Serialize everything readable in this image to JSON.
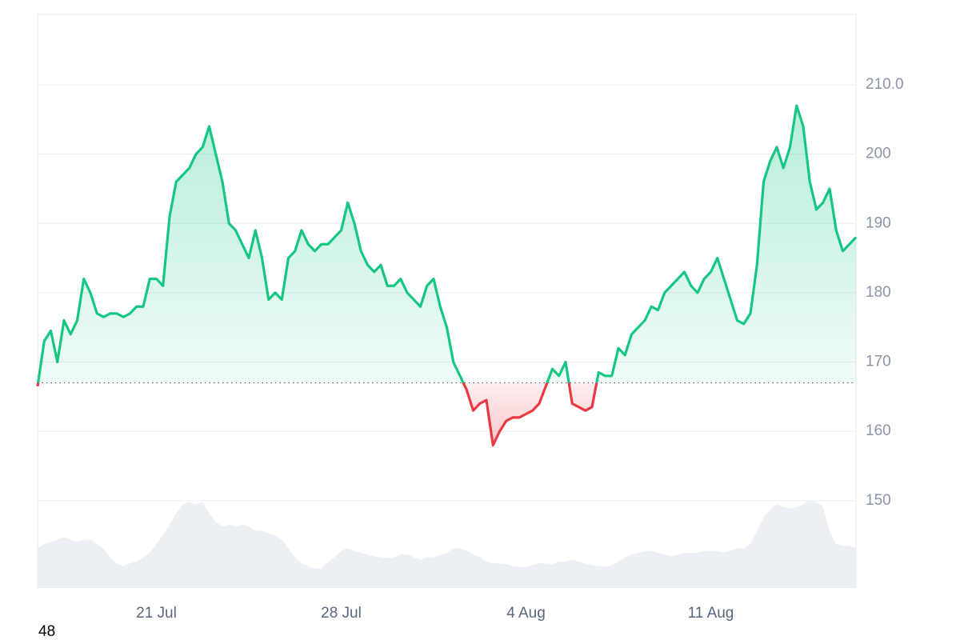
{
  "chart_data": {
    "type": "baseline_line",
    "categories": [
      null,
      null,
      null,
      null,
      null,
      null,
      null,
      null,
      null,
      null,
      null,
      null,
      null,
      null,
      null,
      null,
      null,
      null,
      "21 Jul",
      null,
      null,
      null,
      null,
      null,
      null,
      null,
      null,
      null,
      null,
      null,
      null,
      null,
      null,
      null,
      null,
      null,
      null,
      null,
      null,
      null,
      null,
      null,
      null,
      null,
      null,
      null,
      "28 Jul",
      null,
      null,
      null,
      null,
      null,
      null,
      null,
      null,
      null,
      null,
      null,
      null,
      null,
      null,
      null,
      null,
      null,
      null,
      null,
      null,
      null,
      null,
      null,
      null,
      null,
      null,
      null,
      "4 Aug",
      null,
      null,
      null,
      null,
      null,
      null,
      null,
      null,
      null,
      null,
      null,
      null,
      null,
      null,
      null,
      null,
      null,
      null,
      null,
      null,
      null,
      null,
      null,
      null,
      null,
      null,
      null,
      "11 Aug",
      null,
      null,
      null,
      null,
      null,
      null,
      null,
      null,
      null,
      null,
      null,
      null,
      null,
      null,
      null,
      null,
      null,
      null,
      null,
      null,
      null,
      null
    ],
    "series": [
      {
        "color": "#16c784",
        "color_below": "#ea3943",
        "values": [
          166.5,
          173,
          174.5,
          170,
          176,
          174,
          176,
          182,
          180,
          177,
          176.5,
          177,
          177,
          176.5,
          177,
          178,
          178,
          182,
          182,
          181,
          191,
          196,
          197,
          198,
          200,
          201,
          204,
          200,
          196,
          190,
          189,
          187,
          185,
          189,
          185,
          179,
          180,
          179,
          185,
          186,
          189,
          187,
          186,
          187,
          187,
          188,
          189,
          193,
          190,
          186,
          184,
          183,
          184,
          181,
          181,
          182,
          180,
          179,
          178,
          181,
          182,
          178,
          175,
          170,
          168,
          166,
          163,
          164,
          164.5,
          158,
          160,
          161.5,
          162,
          162,
          162.5,
          163,
          164,
          166.5,
          169,
          168,
          170,
          164,
          163.5,
          163,
          163.5,
          168.5,
          168,
          168,
          172,
          171,
          174,
          175,
          176,
          178,
          177.5,
          180,
          181,
          182,
          183,
          181,
          180,
          182,
          183,
          185,
          182,
          179,
          176,
          175.5,
          177,
          184,
          196,
          199,
          201,
          198,
          201,
          207,
          204,
          196,
          192,
          193,
          195,
          189,
          186,
          187,
          188
        ]
      }
    ],
    "baseline": 167,
    "ylim": [
      137.4,
      220.15
    ],
    "yticks": [
      150,
      160,
      170,
      180,
      190,
      200,
      {
        "value": 210,
        "label": "210.0"
      }
    ],
    "grid": true,
    "volume": {
      "color": "#eceff3",
      "ylim": [
        0,
        100
      ],
      "values": [
        45,
        50,
        52,
        55,
        58,
        55,
        52,
        55,
        55,
        50,
        45,
        35,
        28,
        25,
        28,
        30,
        35,
        40,
        50,
        60,
        72,
        85,
        95,
        98,
        95,
        98,
        85,
        75,
        70,
        72,
        70,
        72,
        70,
        65,
        65,
        62,
        60,
        55,
        45,
        35,
        28,
        25,
        22,
        22,
        30,
        35,
        42,
        45,
        42,
        40,
        38,
        36,
        35,
        34,
        35,
        38,
        38,
        35,
        32,
        35,
        35,
        38,
        40,
        45,
        45,
        42,
        38,
        35,
        30,
        28,
        28,
        27,
        25,
        24,
        24,
        26,
        28,
        28,
        27,
        30,
        30,
        32,
        30,
        28,
        26,
        25,
        24,
        26,
        30,
        35,
        38,
        40,
        42,
        42,
        40,
        38,
        36,
        38,
        40,
        40,
        40,
        42,
        42,
        42,
        40,
        42,
        45,
        45,
        50,
        65,
        80,
        90,
        95,
        92,
        90,
        92,
        95,
        100,
        98,
        92,
        65,
        50,
        48,
        48,
        45
      ]
    }
  },
  "corner_label": "48"
}
